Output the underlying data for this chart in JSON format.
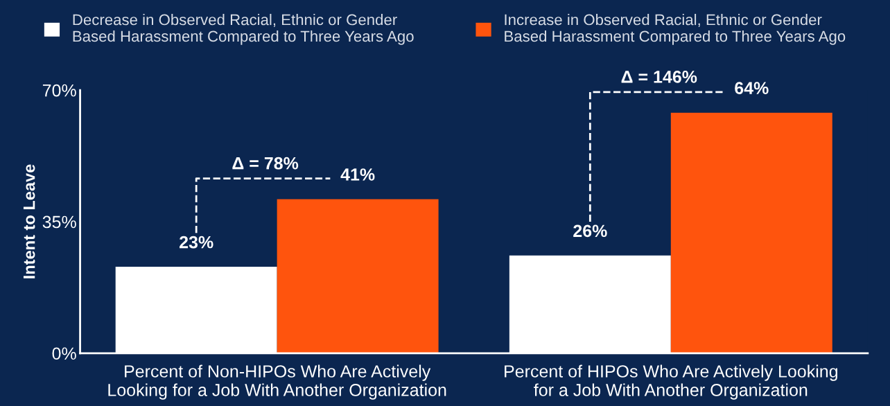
{
  "chart_data": {
    "type": "bar",
    "categories": [
      "Percent of Non-HIPOs Who Are Actively\nLooking for a Job With Another Organization",
      "Percent of HIPOs Who Are Actively Looking\nfor a Job With Another Organization"
    ],
    "series": [
      {
        "name": "Decrease in Observed Racial, Ethnic or Gender\nBased Harassment Compared to Three Years Ago",
        "color": "#ffffff",
        "values": [
          23,
          26
        ],
        "value_labels": [
          "23%",
          "26%"
        ]
      },
      {
        "name": "Increase in Observed Racial, Ethnic or Gender\nBased Harassment Compared to Three Years Ago",
        "color": "#ff540d",
        "values": [
          41,
          64
        ],
        "value_labels": [
          "41%",
          "64%"
        ]
      }
    ],
    "ylabel": "Intent to Leave",
    "ylim": [
      0,
      70
    ],
    "yticks": [
      {
        "value": 0,
        "label": "0%"
      },
      {
        "value": 35,
        "label": "35%"
      },
      {
        "value": 70,
        "label": "70%"
      }
    ],
    "annotations": [
      "Δ = 78%",
      "Δ = 146%"
    ],
    "legend": "top",
    "grid": false
  }
}
